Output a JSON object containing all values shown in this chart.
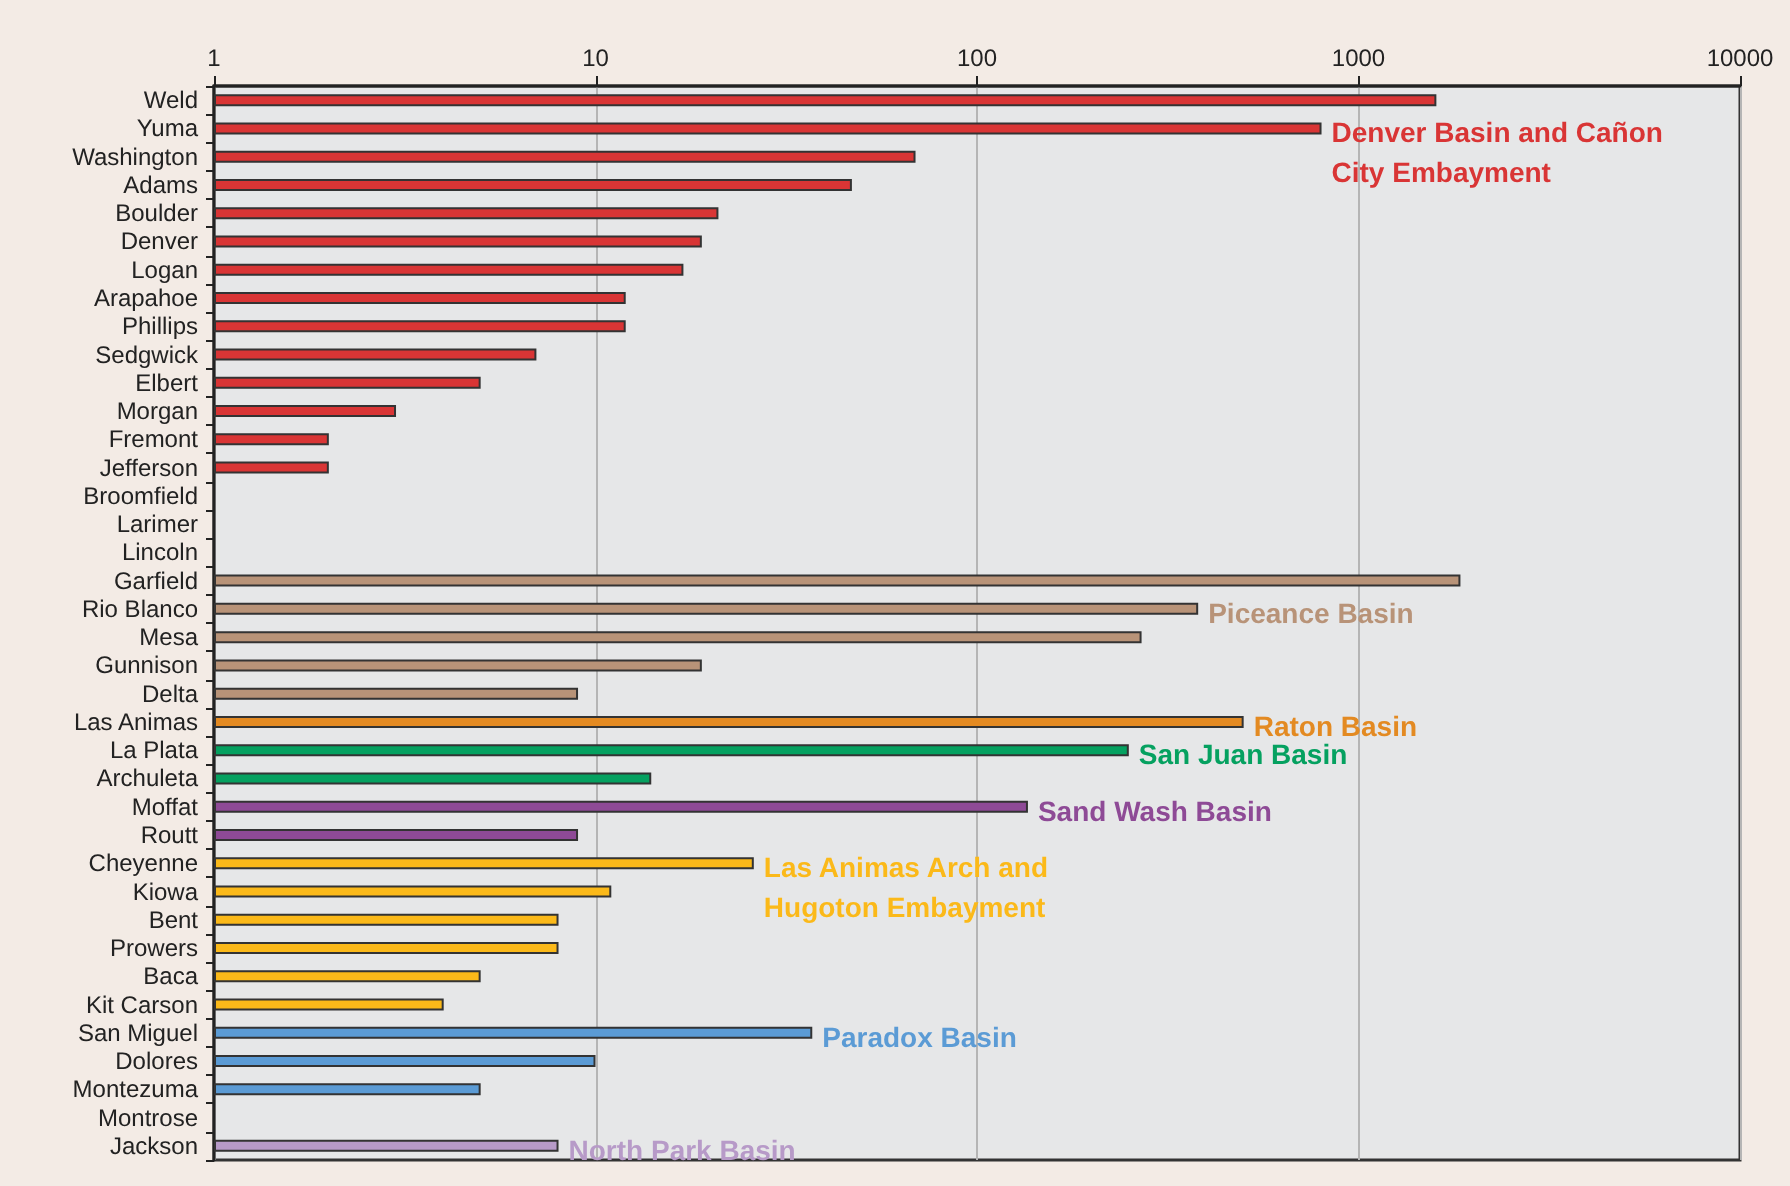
{
  "chart_data": {
    "type": "bar",
    "orientation": "horizontal",
    "log": "x",
    "categories": [
      "Weld",
      "Yuma",
      "Washington",
      "Adams",
      "Boulder",
      "Denver",
      "Logan",
      "Arapahoe",
      "Phillips",
      "Sedgwick",
      "Elbert",
      "Morgan",
      "Fremont",
      "Jefferson",
      "Broomfield",
      "Larimer",
      "Lincoln",
      "Garfield",
      "Rio Blanco",
      "Mesa",
      "Gunnison",
      "Delta",
      "Las Animas",
      "La Plata",
      "Archuleta",
      "Moffat",
      "Routt",
      "Cheyenne",
      "Kiowa",
      "Bent",
      "Prowers",
      "Baca",
      "Kit Carson",
      "San Miguel",
      "Dolores",
      "Montezuma",
      "Montrose",
      "Jackson"
    ],
    "series": [
      {
        "name": "Denver Basin and Cañon City Embayment",
        "color": "#d93535",
        "values": [
          1600,
          800,
          69,
          47,
          21,
          19,
          17,
          12,
          12,
          7,
          5,
          3,
          2,
          2,
          null,
          null,
          null,
          null,
          null,
          null,
          null,
          null,
          null,
          null,
          null,
          null,
          null,
          null,
          null,
          null,
          null,
          null,
          null,
          null,
          null,
          null,
          null,
          null
        ]
      },
      {
        "name": "Piceance Basin",
        "color": "#b89378",
        "values": [
          null,
          null,
          null,
          null,
          null,
          null,
          null,
          null,
          null,
          null,
          null,
          null,
          null,
          null,
          null,
          null,
          null,
          1850,
          380,
          270,
          19,
          9,
          null,
          null,
          null,
          null,
          null,
          null,
          null,
          null,
          null,
          null,
          null,
          null,
          null,
          null,
          null,
          null
        ]
      },
      {
        "name": "Raton Basin",
        "color": "#e38a22",
        "values": [
          null,
          null,
          null,
          null,
          null,
          null,
          null,
          null,
          null,
          null,
          null,
          null,
          null,
          null,
          null,
          null,
          null,
          null,
          null,
          null,
          null,
          null,
          500,
          null,
          null,
          null,
          null,
          null,
          null,
          null,
          null,
          null,
          null,
          null,
          null,
          null,
          null,
          null
        ]
      },
      {
        "name": "San Juan Basin",
        "color": "#05a160",
        "values": [
          null,
          null,
          null,
          null,
          null,
          null,
          null,
          null,
          null,
          null,
          null,
          null,
          null,
          null,
          null,
          null,
          null,
          null,
          null,
          null,
          null,
          null,
          null,
          250,
          14,
          null,
          null,
          null,
          null,
          null,
          null,
          null,
          null,
          null,
          null,
          null,
          null,
          null
        ]
      },
      {
        "name": "Sand Wash Basin",
        "color": "#8e4a96",
        "values": [
          null,
          null,
          null,
          null,
          null,
          null,
          null,
          null,
          null,
          null,
          null,
          null,
          null,
          null,
          null,
          null,
          null,
          null,
          null,
          null,
          null,
          null,
          null,
          null,
          null,
          136,
          9,
          null,
          null,
          null,
          null,
          null,
          null,
          null,
          null,
          null,
          null,
          null
        ]
      },
      {
        "name": "Las Animas Arch and Hugoton Embayment",
        "color": "#fbb919",
        "values": [
          null,
          null,
          null,
          null,
          null,
          null,
          null,
          null,
          null,
          null,
          null,
          null,
          null,
          null,
          null,
          null,
          null,
          null,
          null,
          null,
          null,
          null,
          null,
          null,
          null,
          null,
          null,
          26,
          11,
          8,
          8,
          5,
          4,
          null,
          null,
          null,
          null,
          null
        ]
      },
      {
        "name": "Paradox Basin",
        "color": "#5b9bd5",
        "values": [
          null,
          null,
          null,
          null,
          null,
          null,
          null,
          null,
          null,
          null,
          null,
          null,
          null,
          null,
          null,
          null,
          null,
          null,
          null,
          null,
          null,
          null,
          null,
          null,
          null,
          null,
          null,
          null,
          null,
          null,
          null,
          null,
          null,
          37,
          10,
          5,
          null,
          null
        ]
      },
      {
        "name": "North Park Basin",
        "color": "#b79ac8",
        "values": [
          null,
          null,
          null,
          null,
          null,
          null,
          null,
          null,
          null,
          null,
          null,
          null,
          null,
          null,
          null,
          null,
          null,
          null,
          null,
          null,
          null,
          null,
          null,
          null,
          null,
          null,
          null,
          null,
          null,
          null,
          null,
          null,
          null,
          null,
          null,
          null,
          null,
          8
        ]
      }
    ],
    "xlim": [
      1,
      10000
    ],
    "xticks": [
      1,
      10,
      100,
      1000,
      10000
    ],
    "grid": "x",
    "legend": false
  }
}
